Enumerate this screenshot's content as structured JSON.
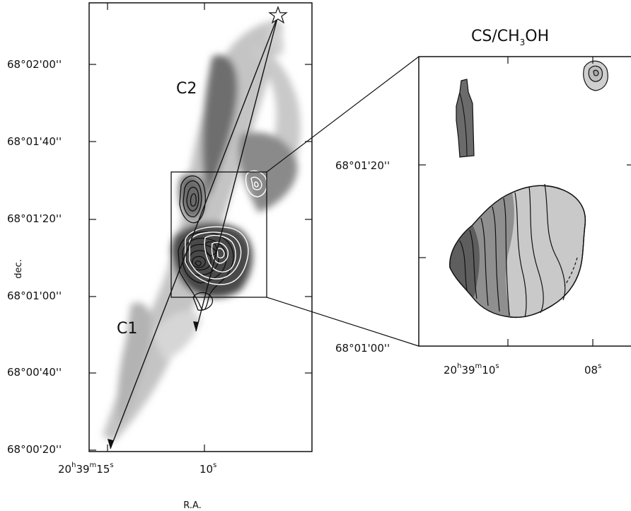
{
  "chart_data": [
    {
      "type": "heatmap",
      "title": "",
      "xlabel": "R.A.",
      "ylabel": "dec.",
      "x_ticks": [
        {
          "h": "20",
          "m": "39",
          "s": "15"
        },
        {
          "h": "",
          "m": "",
          "s": "10",
          "short": "10"
        }
      ],
      "y_ticks": [
        "68°00'20''",
        "68°00'40''",
        "68°01'00''",
        "68°01'20''",
        "68°01'40''",
        "68°02'00''"
      ],
      "region_labels": [
        "C1",
        "C2"
      ],
      "grid": false
    },
    {
      "type": "heatmap",
      "title_main": "CS/CH",
      "title_sub": "3",
      "title_end": "OH",
      "x_ticks": [
        {
          "h": "20",
          "m": "39",
          "s": "10"
        },
        {
          "s": "08"
        }
      ],
      "y_ticks": [
        "68°01'00''",
        "68°01'20''"
      ],
      "grid": false
    }
  ]
}
